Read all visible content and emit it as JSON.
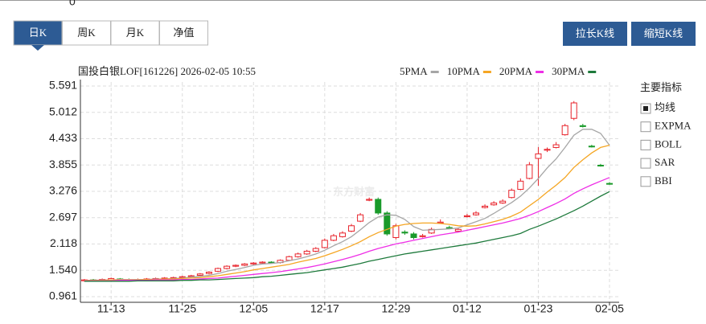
{
  "top_axis_label": 0,
  "tabs": [
    "日K",
    "周K",
    "月K",
    "净值"
  ],
  "buttons": [
    "拉长K线",
    "缩短K线"
  ],
  "indicators": {
    "title": "主要指标",
    "items": [
      {
        "label": "均线",
        "checked": true
      },
      {
        "label": "EXPMA",
        "checked": false
      },
      {
        "label": "BOLL",
        "checked": false
      },
      {
        "label": "SAR",
        "checked": false
      },
      {
        "label": "BBI",
        "checked": false
      }
    ]
  },
  "chart_data": {
    "type": "candlestick",
    "title": "国投白银LOF[161226] 2026-02-05 10:55",
    "watermark": "东方财富",
    "categories": [
      null,
      null,
      null,
      "11-13",
      null,
      null,
      null,
      null,
      null,
      null,
      null,
      "11-25",
      null,
      null,
      null,
      null,
      null,
      null,
      null,
      "12-05",
      null,
      null,
      null,
      null,
      null,
      null,
      null,
      "12-17",
      null,
      null,
      null,
      null,
      null,
      null,
      null,
      "12-29",
      null,
      null,
      null,
      null,
      null,
      null,
      null,
      "01-12",
      null,
      null,
      null,
      null,
      null,
      null,
      null,
      "01-23",
      null,
      null,
      null,
      null,
      null,
      null,
      null,
      "02-05"
    ],
    "open": [
      1.31,
      1.33,
      1.32,
      1.33,
      1.35,
      1.34,
      1.33,
      1.34,
      1.35,
      1.36,
      1.37,
      1.38,
      1.4,
      1.43,
      1.47,
      1.52,
      1.58,
      1.63,
      1.65,
      1.68,
      1.7,
      1.72,
      1.71,
      1.76,
      1.84,
      1.9,
      1.96,
      2.04,
      2.2,
      2.28,
      2.4,
      2.62,
      3.08,
      3.1,
      2.8,
      2.26,
      2.38,
      2.34,
      2.28,
      2.36,
      2.58,
      2.48,
      2.4,
      2.72,
      2.76,
      2.92,
      2.98,
      3.02,
      3.14,
      3.32,
      3.56,
      4.0,
      4.18,
      4.24,
      4.52,
      4.88,
      4.72,
      4.27,
      3.85,
      3.45
    ],
    "high": [
      1.35,
      1.35,
      1.36,
      1.38,
      1.37,
      1.36,
      1.36,
      1.37,
      1.38,
      1.39,
      1.4,
      1.42,
      1.44,
      1.48,
      1.52,
      1.6,
      1.65,
      1.67,
      1.7,
      1.72,
      1.74,
      1.74,
      1.78,
      1.86,
      1.93,
      1.99,
      2.05,
      2.24,
      2.34,
      2.4,
      2.56,
      2.8,
      3.14,
      3.14,
      2.84,
      2.56,
      2.42,
      2.38,
      2.34,
      2.48,
      2.66,
      2.52,
      2.48,
      2.78,
      2.84,
      2.99,
      3.06,
      3.1,
      3.34,
      3.56,
      3.92,
      4.25,
      4.24,
      4.36,
      4.76,
      5.26,
      4.76,
      4.3,
      3.88,
      3.48
    ],
    "low": [
      1.29,
      1.3,
      1.3,
      1.31,
      1.32,
      1.31,
      1.31,
      1.32,
      1.33,
      1.34,
      1.35,
      1.36,
      1.38,
      1.41,
      1.45,
      1.5,
      1.56,
      1.61,
      1.63,
      1.66,
      1.68,
      1.69,
      1.69,
      1.74,
      1.82,
      1.88,
      1.94,
      2.02,
      2.18,
      2.26,
      2.38,
      2.6,
      3.06,
      2.76,
      2.3,
      2.22,
      2.32,
      2.22,
      2.26,
      2.34,
      2.56,
      2.44,
      2.38,
      2.7,
      2.74,
      2.9,
      2.96,
      3.0,
      3.12,
      3.3,
      3.54,
      3.4,
      4.14,
      4.22,
      4.5,
      4.84,
      4.68,
      4.24,
      3.82,
      3.42
    ],
    "close": [
      1.33,
      1.32,
      1.34,
      1.36,
      1.34,
      1.33,
      1.34,
      1.35,
      1.36,
      1.37,
      1.38,
      1.4,
      1.42,
      1.46,
      1.5,
      1.58,
      1.63,
      1.65,
      1.68,
      1.7,
      1.72,
      1.71,
      1.76,
      1.84,
      1.9,
      1.96,
      2.02,
      2.2,
      2.3,
      2.36,
      2.52,
      2.76,
      3.1,
      2.8,
      2.34,
      2.52,
      2.36,
      2.26,
      2.3,
      2.44,
      2.6,
      2.46,
      2.44,
      2.74,
      2.8,
      2.95,
      3.02,
      3.06,
      3.3,
      3.5,
      3.86,
      4.1,
      4.2,
      4.3,
      4.72,
      5.22,
      4.7,
      4.26,
      3.84,
      3.44
    ],
    "up_color": "#e8232b",
    "down_color": "#1a9a2a",
    "series": [
      {
        "name": "5PMA",
        "color": "#a6a6a6",
        "values": [
          1.32,
          1.32,
          1.33,
          1.33,
          1.34,
          1.34,
          1.34,
          1.34,
          1.35,
          1.35,
          1.36,
          1.37,
          1.39,
          1.41,
          1.43,
          1.47,
          1.52,
          1.56,
          1.6,
          1.65,
          1.68,
          1.69,
          1.71,
          1.75,
          1.79,
          1.84,
          1.9,
          1.98,
          2.08,
          2.17,
          2.28,
          2.43,
          2.59,
          2.71,
          2.76,
          2.75,
          2.66,
          2.5,
          2.42,
          2.43,
          2.44,
          2.45,
          2.47,
          2.54,
          2.61,
          2.68,
          2.79,
          2.91,
          3.03,
          3.17,
          3.35,
          3.56,
          3.79,
          3.99,
          4.24,
          4.51,
          4.64,
          4.64,
          4.55,
          4.29
        ]
      },
      {
        "name": "10PMA",
        "color": "#f5a623",
        "values": [
          1.32,
          1.32,
          1.32,
          1.33,
          1.33,
          1.33,
          1.33,
          1.34,
          1.34,
          1.35,
          1.35,
          1.36,
          1.37,
          1.38,
          1.4,
          1.42,
          1.45,
          1.48,
          1.51,
          1.55,
          1.58,
          1.61,
          1.64,
          1.67,
          1.72,
          1.76,
          1.8,
          1.86,
          1.93,
          2.0,
          2.08,
          2.17,
          2.28,
          2.37,
          2.44,
          2.51,
          2.55,
          2.57,
          2.58,
          2.58,
          2.57,
          2.55,
          2.52,
          2.51,
          2.52,
          2.56,
          2.61,
          2.66,
          2.73,
          2.82,
          2.96,
          3.1,
          3.26,
          3.41,
          3.58,
          3.8,
          3.97,
          4.12,
          4.24,
          4.29
        ]
      },
      {
        "name": "20PMA",
        "color": "#ee2ee6",
        "values": [
          1.31,
          1.31,
          1.31,
          1.31,
          1.32,
          1.32,
          1.32,
          1.32,
          1.33,
          1.33,
          1.33,
          1.34,
          1.34,
          1.35,
          1.36,
          1.37,
          1.39,
          1.41,
          1.43,
          1.45,
          1.47,
          1.49,
          1.51,
          1.54,
          1.57,
          1.6,
          1.64,
          1.68,
          1.73,
          1.78,
          1.83,
          1.89,
          1.96,
          2.02,
          2.07,
          2.12,
          2.16,
          2.2,
          2.24,
          2.28,
          2.32,
          2.35,
          2.38,
          2.42,
          2.46,
          2.5,
          2.54,
          2.58,
          2.63,
          2.68,
          2.75,
          2.83,
          2.92,
          3.01,
          3.11,
          3.23,
          3.33,
          3.42,
          3.5,
          3.58
        ]
      },
      {
        "name": "30PMA",
        "color": "#1e7a3c",
        "values": [
          1.3,
          1.3,
          1.3,
          1.3,
          1.3,
          1.3,
          1.31,
          1.31,
          1.31,
          1.31,
          1.31,
          1.32,
          1.32,
          1.33,
          1.33,
          1.34,
          1.35,
          1.36,
          1.37,
          1.38,
          1.4,
          1.41,
          1.43,
          1.45,
          1.47,
          1.49,
          1.52,
          1.55,
          1.58,
          1.61,
          1.65,
          1.69,
          1.74,
          1.78,
          1.82,
          1.86,
          1.9,
          1.93,
          1.96,
          1.99,
          2.02,
          2.05,
          2.08,
          2.11,
          2.14,
          2.18,
          2.22,
          2.26,
          2.3,
          2.35,
          2.44,
          2.51,
          2.59,
          2.67,
          2.76,
          2.85,
          2.95,
          3.06,
          3.17,
          3.27
        ]
      }
    ],
    "ylim": [
      0.961,
      5.591
    ],
    "yticks": [
      0.961,
      {
        "value": 1.54,
        "label": "1.540"
      },
      2.118,
      2.697,
      3.276,
      3.855,
      4.433,
      5.012,
      5.591
    ],
    "grid": true
  }
}
